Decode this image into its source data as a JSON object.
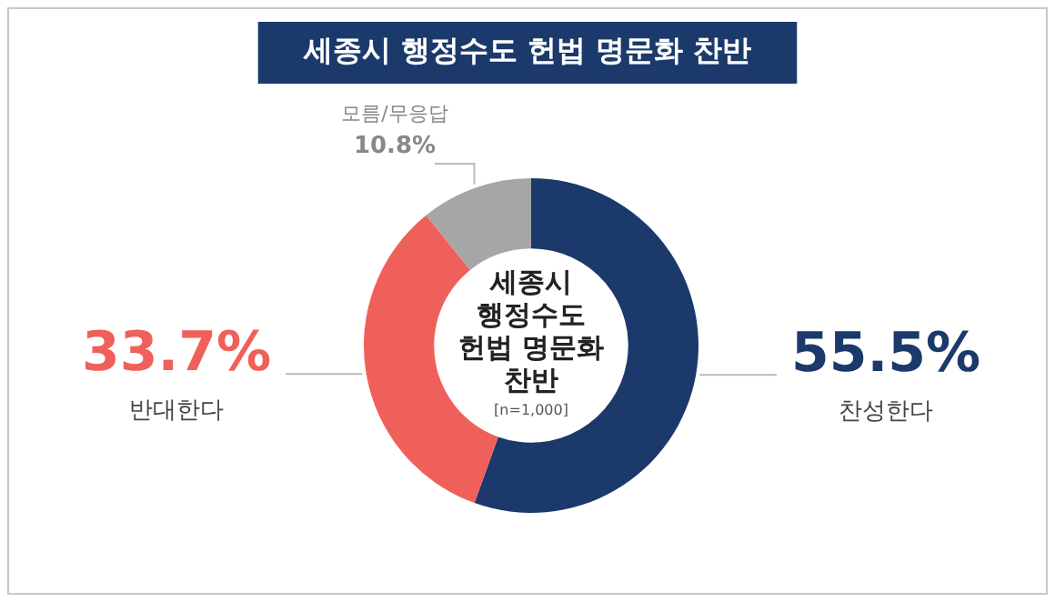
{
  "chart_data": {
    "type": "donut",
    "title": "세종시 행정수도 헌법 명문화 찬반",
    "categories": [
      "찬성한다",
      "반대한다",
      "모름/무응답"
    ],
    "values": [
      55.5,
      33.7,
      10.8
    ],
    "colors": [
      "#1b3a6b",
      "#f0605a",
      "#a6a6a6"
    ],
    "value_labels": [
      "55.5%",
      "33.7%",
      "10.8%"
    ],
    "annotations": [
      "세종시 행정수도 헌법 명문화 찬반",
      "[n=1,000]"
    ],
    "legend": false
  }
}
